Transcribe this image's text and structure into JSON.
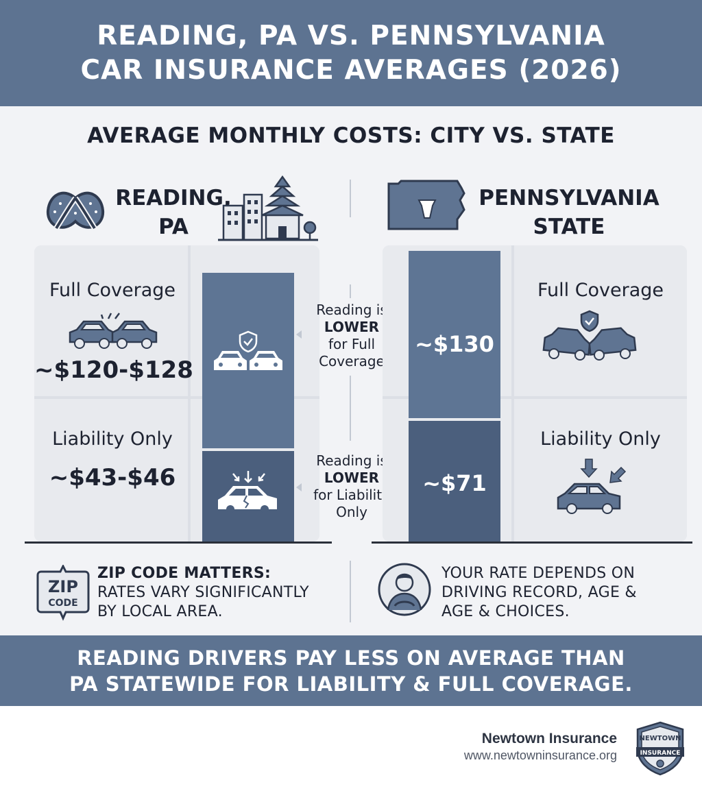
{
  "header": {
    "title_line1": "READING, PA VS. PENNSYLVANIA",
    "title_line2": "CAR INSURANCE AVERAGES (2026)"
  },
  "subtitle": "AVERAGE MONTHLY COSTS: CITY VS. STATE",
  "reading": {
    "name_line1": "READING,",
    "name_line2": "PA",
    "full_label": "Full Coverage",
    "full_price": "~$120-$128",
    "liability_label": "Liability Only",
    "liability_price": "~$43-$46"
  },
  "state": {
    "name_line1": "PENNSYLVANIA",
    "name_line2": "STATE",
    "full_label": "Full Coverage",
    "full_price": "~$130",
    "liability_label": "Liability Only",
    "liability_price": "~$71"
  },
  "notes": {
    "full_l1": "Reading is",
    "full_l2": "LOWER",
    "full_l3": "for Full",
    "full_l4": "Coverage",
    "liab_l1": "Reading is",
    "liab_l2": "LOWER",
    "liab_l3": "for Liability",
    "liab_l4": "Only"
  },
  "info_left": {
    "badge_l1": "ZIP",
    "badge_l2": "CODE",
    "title": "ZIP CODE MATTERS:",
    "line1": "RATES VARY SIGNIFICANTLY",
    "line2": "BY LOCAL AREA."
  },
  "info_right": {
    "line1": "YOUR RATE DEPENDS ON",
    "line2": "DRIVING RECORD, AGE &",
    "line3": "AGE & CHOICES."
  },
  "footer": {
    "line1": "READING DRIVERS PAY LESS ON AVERAGE THAN",
    "line2": "PA STATEWIDE FOR LIABILITY & FULL COVERAGE."
  },
  "brand": {
    "name": "Newtown Insurance",
    "url": "www.newtowninsurance.org",
    "logo_text_top": "NEWTOWN",
    "logo_text_bottom": "INSURANCE"
  },
  "colors": {
    "header_bg": "#5d7391",
    "bar_full": "#5e7594",
    "bar_liability": "#4b5f7d",
    "icon_stroke": "#2f3a4f",
    "icon_fill": "#5f7492"
  },
  "icons": {
    "reading": "pretzel-icon",
    "reading_skyline": "city-skyline-icon",
    "state": "pennsylvania-map-icon",
    "full_coverage": "car-collision-icon",
    "liability": "car-impact-icon",
    "zip": "zip-code-badge-icon",
    "driver": "driver-icon"
  }
}
